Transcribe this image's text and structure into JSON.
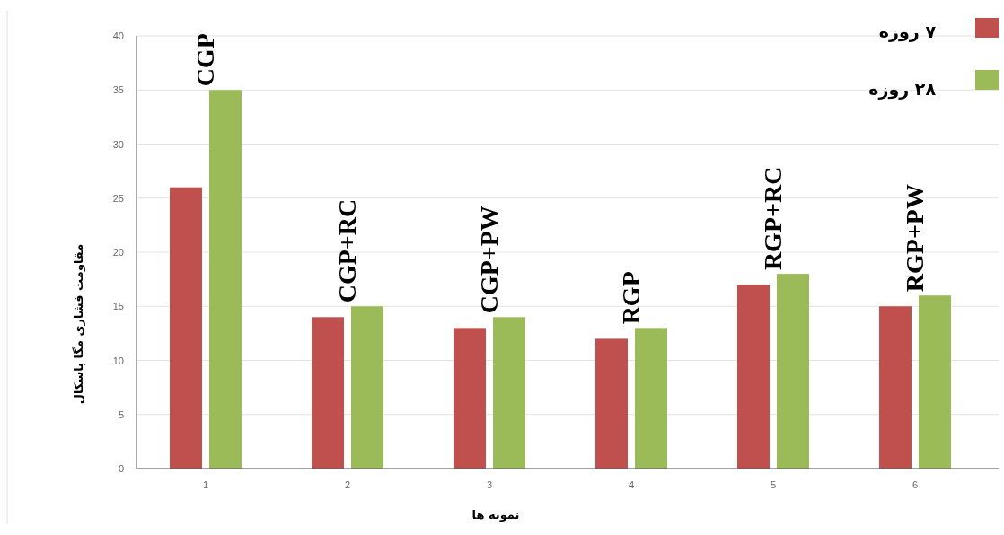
{
  "chart_data": {
    "type": "bar",
    "xlabel": "نمونه ها",
    "ylabel": "مقاومت فشاری مگا پاسکال",
    "categories": [
      "1",
      "2",
      "3",
      "4",
      "5",
      "6"
    ],
    "series": [
      {
        "name": "۷ روزه",
        "color": "#c0504d",
        "values": [
          26,
          14,
          13,
          12,
          17,
          15
        ]
      },
      {
        "name": "۲۸ روزه",
        "color": "#9bbb59",
        "values": [
          35,
          15,
          14,
          13,
          18,
          16
        ]
      }
    ],
    "ylim": [
      0,
      40
    ],
    "yticks": [
      0,
      5,
      10,
      15,
      20,
      25,
      30,
      35,
      40
    ],
    "grid": "y",
    "legend": "top right",
    "annotations": [
      {
        "text": "CGP",
        "x": "1",
        "y": 35
      },
      {
        "text": "CGP+RC",
        "x": "2",
        "y": 15
      },
      {
        "text": "CGP+PW",
        "x": "3",
        "y": 14
      },
      {
        "text": "RGP",
        "x": "4",
        "y": 13
      },
      {
        "text": "RGP+RC",
        "x": "5",
        "y": 18
      },
      {
        "text": "RGP+PW",
        "x": "6",
        "y": 16
      }
    ]
  }
}
